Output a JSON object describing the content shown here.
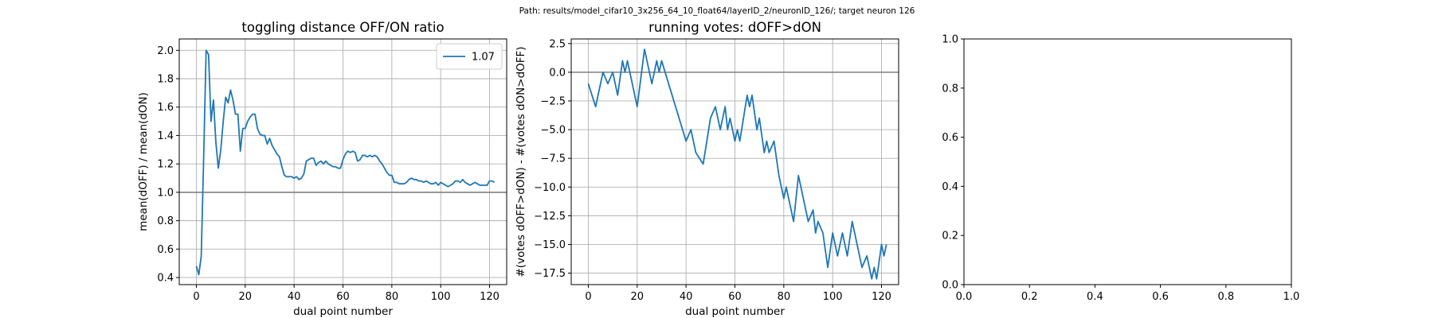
{
  "suptitle": "Path: results/model_cifar10_3x256_64_10_float64/layerID_2/neuronID_126/; target neuron 126",
  "colors": {
    "series": "#1f77b4",
    "hline": "#808080",
    "grid": "#b0b0b0",
    "axes": "#000000"
  },
  "chart_data": [
    {
      "type": "line",
      "title": "toggling distance OFF/ON ratio",
      "xlabel": "dual point number",
      "ylabel": "mean(dOFF) / mean(dON)",
      "xlim": [
        -7,
        127
      ],
      "ylim": [
        0.35,
        2.08
      ],
      "xticks": [
        0,
        20,
        40,
        60,
        80,
        100,
        120
      ],
      "xtick_labels": [
        "0",
        "20",
        "40",
        "60",
        "80",
        "100",
        "120"
      ],
      "yticks": [
        0.4,
        0.6,
        0.8,
        1.0,
        1.2,
        1.4,
        1.6,
        1.8,
        2.0
      ],
      "ytick_labels": [
        "0.4",
        "0.6",
        "0.8",
        "1.0",
        "1.2",
        "1.4",
        "1.6",
        "1.8",
        "2.0"
      ],
      "grid": true,
      "legend": {
        "placement": "top-right",
        "entries": [
          "1.07"
        ]
      },
      "hline": 1.0,
      "series": [
        {
          "name": "1.07",
          "color": "#1f77b4",
          "x": [
            0,
            1,
            2,
            3,
            4,
            5,
            6,
            7,
            8,
            9,
            10,
            11,
            12,
            13,
            14,
            15,
            16,
            17,
            18,
            19,
            20,
            21,
            22,
            23,
            24,
            25,
            26,
            27,
            28,
            29,
            30,
            31,
            32,
            33,
            34,
            35,
            36,
            37,
            38,
            39,
            40,
            41,
            42,
            43,
            44,
            45,
            46,
            47,
            48,
            49,
            50,
            51,
            52,
            53,
            54,
            55,
            56,
            57,
            58,
            59,
            60,
            61,
            62,
            63,
            64,
            65,
            66,
            67,
            68,
            69,
            70,
            71,
            72,
            73,
            74,
            75,
            76,
            77,
            78,
            79,
            80,
            81,
            82,
            83,
            84,
            85,
            86,
            87,
            88,
            89,
            90,
            91,
            92,
            93,
            94,
            95,
            96,
            97,
            98,
            99,
            100,
            101,
            102,
            103,
            104,
            105,
            106,
            107,
            108,
            109,
            110,
            111,
            112,
            113,
            114,
            115,
            116,
            117,
            118,
            119,
            120,
            121,
            122
          ],
          "y": [
            0.48,
            0.42,
            0.55,
            1.25,
            2.0,
            1.97,
            1.5,
            1.65,
            1.35,
            1.17,
            1.3,
            1.5,
            1.67,
            1.63,
            1.72,
            1.65,
            1.55,
            1.55,
            1.29,
            1.45,
            1.45,
            1.5,
            1.53,
            1.55,
            1.55,
            1.45,
            1.41,
            1.4,
            1.4,
            1.34,
            1.38,
            1.33,
            1.3,
            1.27,
            1.25,
            1.18,
            1.12,
            1.11,
            1.11,
            1.11,
            1.1,
            1.11,
            1.09,
            1.1,
            1.13,
            1.22,
            1.23,
            1.24,
            1.24,
            1.19,
            1.21,
            1.22,
            1.2,
            1.22,
            1.2,
            1.19,
            1.18,
            1.18,
            1.17,
            1.17,
            1.23,
            1.27,
            1.29,
            1.28,
            1.29,
            1.28,
            1.22,
            1.23,
            1.26,
            1.26,
            1.25,
            1.26,
            1.25,
            1.26,
            1.25,
            1.22,
            1.2,
            1.17,
            1.14,
            1.12,
            1.12,
            1.07,
            1.07,
            1.06,
            1.06,
            1.06,
            1.07,
            1.09,
            1.1,
            1.09,
            1.09,
            1.08,
            1.08,
            1.07,
            1.08,
            1.07,
            1.06,
            1.06,
            1.07,
            1.05,
            1.07,
            1.06,
            1.05,
            1.04,
            1.05,
            1.06,
            1.08,
            1.08,
            1.07,
            1.09,
            1.07,
            1.06,
            1.05,
            1.06,
            1.07,
            1.06,
            1.05,
            1.05,
            1.05,
            1.05,
            1.08,
            1.08,
            1.07
          ]
        }
      ]
    },
    {
      "type": "line",
      "title": "running votes: dOFF>dON",
      "xlabel": "dual point number",
      "ylabel": "#(votes dOFF>dON) - #(votes dON>dOFF)",
      "xlim": [
        -7,
        127
      ],
      "ylim": [
        -18.5,
        2.9
      ],
      "xticks": [
        0,
        20,
        40,
        60,
        80,
        100,
        120
      ],
      "xtick_labels": [
        "0",
        "20",
        "40",
        "60",
        "80",
        "100",
        "120"
      ],
      "yticks": [
        -17.5,
        -15.0,
        -12.5,
        -10.0,
        -7.5,
        -5.0,
        -2.5,
        0.0,
        2.5
      ],
      "ytick_labels": [
        "−17.5",
        "−15.0",
        "−12.5",
        "−10.0",
        "−7.5",
        "−5.0",
        "−2.5",
        "0.0",
        "2.5"
      ],
      "grid": true,
      "hline": 0.0,
      "series": [
        {
          "name": "",
          "color": "#1f77b4",
          "x": [
            0,
            3,
            6,
            8,
            10,
            12,
            14,
            15,
            16,
            18,
            20,
            23,
            26,
            28,
            29,
            30,
            40,
            42,
            44,
            47,
            50,
            52,
            54,
            56,
            57,
            58,
            60,
            61,
            62,
            65,
            66,
            67,
            69,
            70,
            72,
            73,
            74,
            76,
            78,
            80,
            81,
            82,
            84,
            86,
            88,
            90,
            92,
            93,
            94,
            96,
            98,
            100,
            102,
            104,
            106,
            108,
            110,
            112,
            114,
            116,
            117,
            118,
            120,
            121,
            122
          ],
          "y": [
            -1,
            -3,
            0,
            -1,
            0,
            -2,
            1,
            0,
            1,
            -1,
            -3,
            2,
            -1,
            1,
            0,
            1,
            -6,
            -5,
            -7,
            -8,
            -4,
            -3,
            -5,
            -3,
            -5,
            -4,
            -6,
            -5,
            -6,
            -2,
            -3,
            -2,
            -5,
            -4,
            -7,
            -6,
            -7,
            -6,
            -9,
            -11,
            -10,
            -11,
            -13,
            -9,
            -11,
            -13,
            -12,
            -14,
            -13,
            -14,
            -17,
            -14,
            -16,
            -14,
            -16,
            -13,
            -15,
            -17,
            -16,
            -18,
            -17,
            -18,
            -15,
            -16,
            -15
          ]
        }
      ]
    },
    {
      "type": "line",
      "title": "",
      "xlabel": "",
      "ylabel": "",
      "xlim": [
        0.0,
        1.0
      ],
      "ylim": [
        0.0,
        1.0
      ],
      "xticks": [
        0.0,
        0.2,
        0.4,
        0.6,
        0.8,
        1.0
      ],
      "xtick_labels": [
        "0.0",
        "0.2",
        "0.4",
        "0.6",
        "0.8",
        "1.0"
      ],
      "yticks": [
        0.0,
        0.2,
        0.4,
        0.6,
        0.8,
        1.0
      ],
      "ytick_labels": [
        "0.0",
        "0.2",
        "0.4",
        "0.6",
        "0.8",
        "1.0"
      ],
      "grid": false,
      "series": []
    }
  ]
}
